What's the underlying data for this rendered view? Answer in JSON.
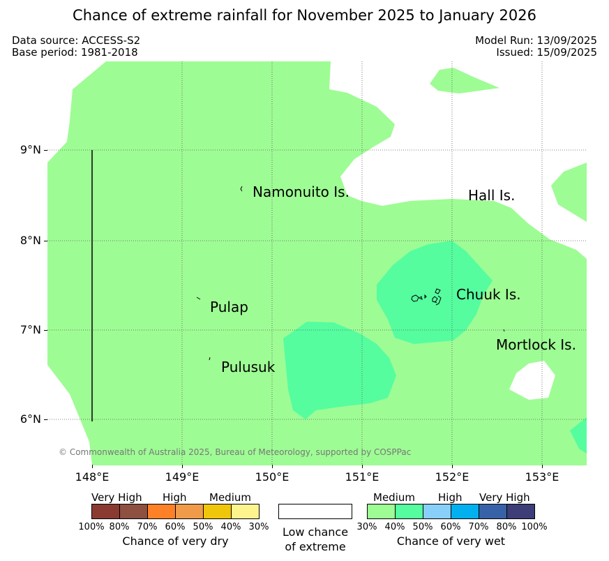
{
  "title": "Chance of extreme rainfall for November 2025 to January 2026",
  "info": {
    "data_source": "Data source: ACCESS-S2",
    "base_period": "Base period: 1981-2018",
    "model_run": "Model Run: 13/09/2025",
    "issued": "Issued: 15/09/2025"
  },
  "map": {
    "latitude_labels": [
      "9°N",
      "8°N",
      "7°N",
      "6°N"
    ],
    "longitude_labels": [
      "148°E",
      "149°E",
      "150°E",
      "151°E",
      "152°E",
      "153°E"
    ],
    "places": {
      "namonuito": "Namonuito Is.",
      "hall": "Hall Is.",
      "pulap": "Pulap",
      "chuuk": "Chuuk Is.",
      "mortlock": "Mortlock Is.",
      "pulusuk": "Pulusuk"
    },
    "copyright": "© Commonwealth of Australia 2025, Bureau of Meteorology, supported by COSPPac",
    "colors": {
      "wet_30_40": "#9efc94",
      "wet_40_50": "#55fd9f",
      "low_chance": "#ffffff"
    }
  },
  "legend": {
    "dry": {
      "categories": [
        "Very High",
        "High",
        "Medium"
      ],
      "ticks": [
        "100%",
        "80%",
        "70%",
        "60%",
        "50%",
        "40%",
        "30%"
      ],
      "colors": [
        "#8b3a32",
        "#8e5040",
        "#fe8128",
        "#f09b4a",
        "#f0c60a",
        "#fef48e"
      ],
      "caption": "Chance of very dry"
    },
    "low": {
      "caption_line1": "Low chance",
      "caption_line2": "of extreme"
    },
    "wet": {
      "categories": [
        "Medium",
        "High",
        "Very High"
      ],
      "ticks": [
        "30%",
        "40%",
        "50%",
        "60%",
        "70%",
        "80%",
        "100%"
      ],
      "colors": [
        "#9efc94",
        "#55fd9f",
        "#88cffa",
        "#00b0ef",
        "#3862a8",
        "#3d3d78"
      ],
      "caption": "Chance of very wet"
    }
  }
}
